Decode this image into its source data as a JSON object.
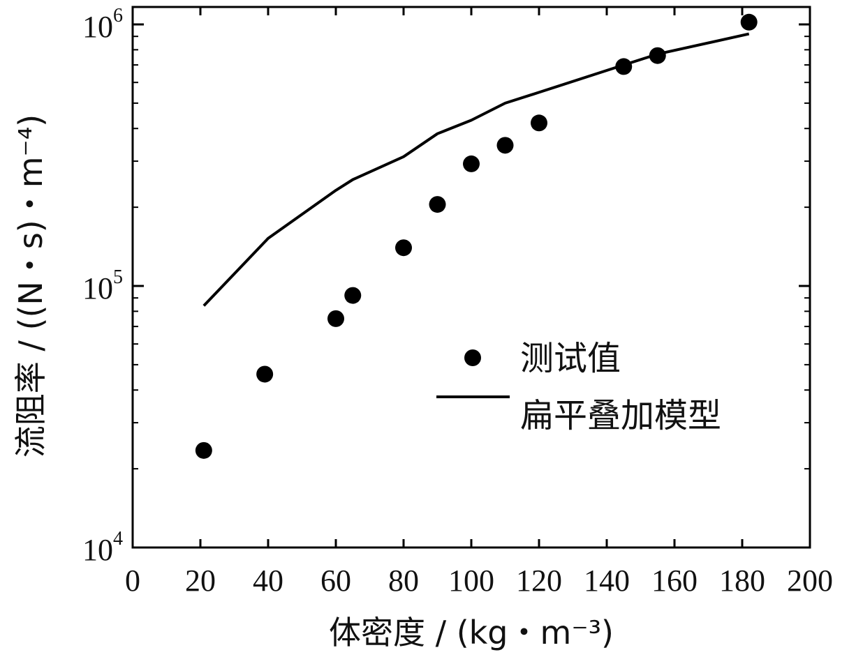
{
  "chart_data": {
    "type": "scatter",
    "xlabel": "体密度 / (kg・m⁻³)",
    "ylabel": "流阻率 / ((N・s)・m⁻⁴)",
    "xlim": [
      0,
      200
    ],
    "ylim": [
      10000,
      1000000
    ],
    "yscale": "log",
    "grid": false,
    "legend_position": "center-right",
    "x_ticks": [
      0,
      20,
      40,
      60,
      80,
      100,
      120,
      140,
      160,
      180,
      200
    ],
    "x_tick_labels": [
      "0",
      "20",
      "40",
      "60",
      "80",
      "100",
      "120",
      "140",
      "160",
      "180",
      "200"
    ],
    "y_ticks": [
      {
        "value": 10000,
        "base": "10",
        "exp": "4"
      },
      {
        "value": 100000,
        "base": "10",
        "exp": "5"
      },
      {
        "value": 1000000,
        "base": "10",
        "exp": "6"
      }
    ],
    "series": [
      {
        "name": "测试值",
        "kind": "scatter",
        "color": "#000000",
        "points": [
          {
            "x": 21,
            "y": 23500
          },
          {
            "x": 39,
            "y": 46000
          },
          {
            "x": 60,
            "y": 75000
          },
          {
            "x": 65,
            "y": 92000
          },
          {
            "x": 80,
            "y": 140000
          },
          {
            "x": 90,
            "y": 205000
          },
          {
            "x": 100,
            "y": 293000
          },
          {
            "x": 110,
            "y": 345000
          },
          {
            "x": 120,
            "y": 420000
          },
          {
            "x": 145,
            "y": 690000
          },
          {
            "x": 155,
            "y": 760000
          },
          {
            "x": 182,
            "y": 1020000
          }
        ]
      },
      {
        "name": "扁平叠加模型",
        "kind": "line",
        "color": "#000000",
        "points": [
          {
            "x": 21,
            "y": 84000
          },
          {
            "x": 40,
            "y": 152000
          },
          {
            "x": 60,
            "y": 232000
          },
          {
            "x": 65,
            "y": 255000
          },
          {
            "x": 80,
            "y": 312000
          },
          {
            "x": 90,
            "y": 382000
          },
          {
            "x": 100,
            "y": 430000
          },
          {
            "x": 110,
            "y": 500000
          },
          {
            "x": 120,
            "y": 550000
          },
          {
            "x": 145,
            "y": 700000
          },
          {
            "x": 155,
            "y": 770000
          },
          {
            "x": 182,
            "y": 920000
          }
        ]
      }
    ]
  }
}
